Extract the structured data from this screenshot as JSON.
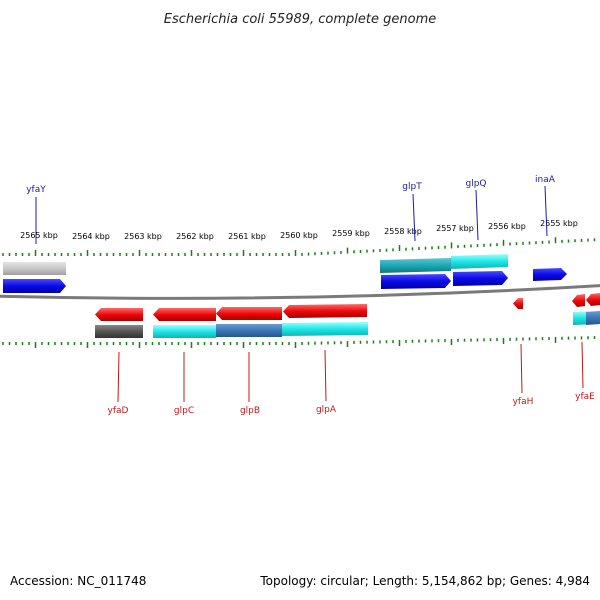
{
  "title": "Escherichia coli 55989, complete genome",
  "footer": {
    "accession": "Accession: NC_011748",
    "summary": "Topology: circular; Length: 5,154,862 bp; Genes: 4,984"
  },
  "colors": {
    "forward_gene": "#0a0ae6",
    "reverse_gene": "#ee0a0a",
    "cds_cyan": "#1ee6e6",
    "cds_teal": "#1ea8b4",
    "cds_steel": "#3a78b4",
    "cds_gray_light": "#c8c8c8",
    "cds_gray_dark": "#555555",
    "backbone": "#7a7a7a",
    "tick": "#1c7c1c",
    "label_forward": "#1a1aa8",
    "label_reverse": "#c01818"
  },
  "scale": {
    "unit": "kbp",
    "labels": [
      "2565 kbp",
      "2564 kbp",
      "2563 kbp",
      "2562 kbp",
      "2561 kbp",
      "2560 kbp",
      "2559 kbp",
      "2558 kbp",
      "2557 kbp",
      "2556 kbp",
      "2555 kbp"
    ],
    "positions_kbp": [
      2565,
      2564,
      2563,
      2562,
      2561,
      2560,
      2559,
      2558,
      2557,
      2556,
      2555
    ]
  },
  "genes_top": [
    {
      "name": "yfaY"
    },
    {
      "name": "glpT"
    },
    {
      "name": "glpQ"
    },
    {
      "name": "inaA"
    }
  ],
  "genes_bottom": [
    {
      "name": "yfaD"
    },
    {
      "name": "glpC"
    },
    {
      "name": "glpB"
    },
    {
      "name": "glpA"
    },
    {
      "name": "yfaH"
    },
    {
      "name": "yfaE"
    }
  ]
}
